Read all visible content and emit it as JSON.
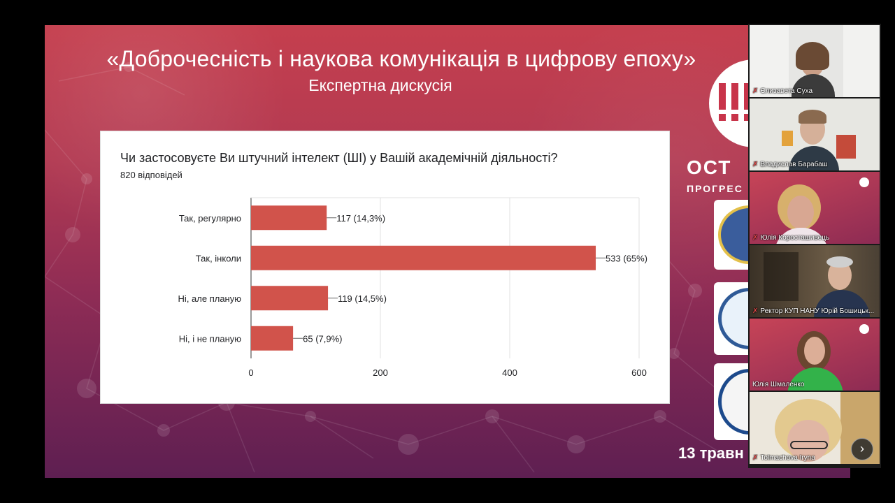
{
  "slide": {
    "title": "«Доброчесність і наукова комунікація в цифрову епоху»",
    "subtitle": "Експертна дискусія",
    "logo_text": "ОСТ",
    "logo_subtext": "ПРОГРЕС",
    "date_fragment": "13 травн"
  },
  "card": {
    "question": "Чи застосовуєте Ви штучний інтелект (ШІ) у Вашій академічній діяльності?",
    "responses": "820 відповідей"
  },
  "chart_data": {
    "type": "bar",
    "orientation": "horizontal",
    "categories": [
      "Так, регулярно",
      "Так, інколи",
      "Ні, але планую",
      "Ні, і не планую"
    ],
    "values": [
      117,
      533,
      119,
      65
    ],
    "data_labels": [
      "117 (14,3%)",
      "533 (65%)",
      "119 (14,5%)",
      "65 (7,9%)"
    ],
    "xlim": [
      0,
      600
    ],
    "xticks": [
      0,
      200,
      400,
      600
    ],
    "grid": true,
    "bar_color": "#d1534b"
  },
  "participants": [
    {
      "name": "Єлизавета Суха"
    },
    {
      "name": "Владислав Барабаш"
    },
    {
      "name": "Юлія Коросташивець"
    },
    {
      "name": "Ректор КУП НАНУ Юрій Бошицьк..."
    },
    {
      "name": "Юлія Шмаленко"
    },
    {
      "name": "Tolmachova Iryna"
    }
  ],
  "controls": {
    "next_icon": "chevron-right-icon",
    "next_glyph": "›"
  },
  "colors": {
    "accent_active": "#3fd07f",
    "mic_muted": "#e04747"
  }
}
